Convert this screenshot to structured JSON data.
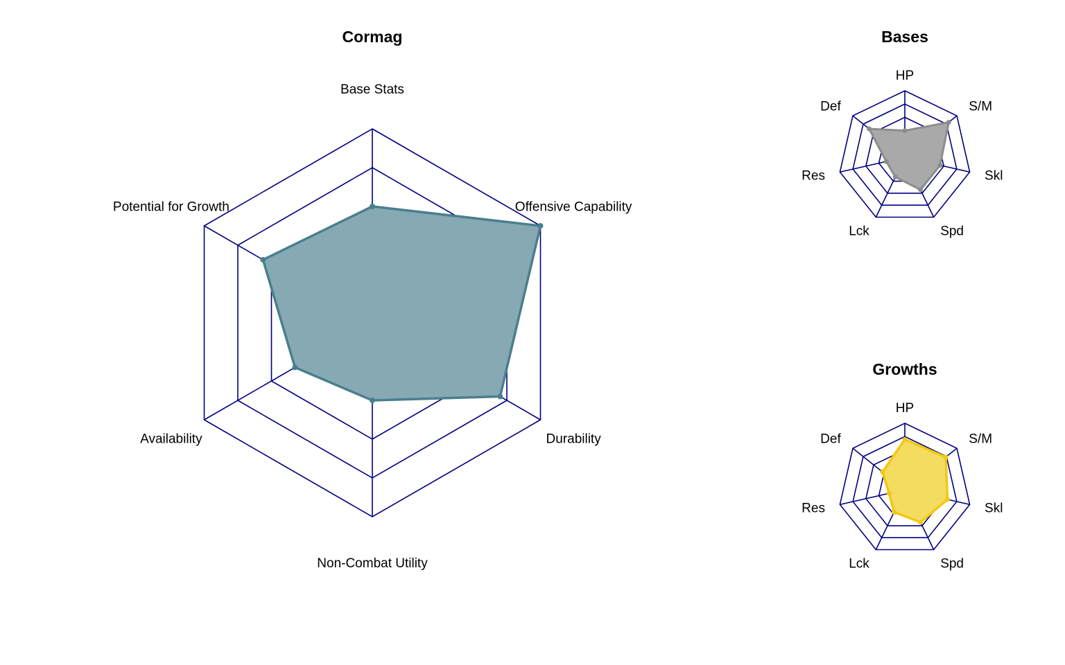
{
  "colors": {
    "grid": "#000080",
    "main_fill": "#86a9b4",
    "main_line": "#4a7f8c",
    "bases_fill": "#a9a9a9",
    "bases_line": "#8c8c8c",
    "growths_fill": "#f3dc60",
    "growths_line": "#f2c811"
  },
  "chart_data": [
    {
      "type": "radar",
      "title": "Cormag",
      "axes": [
        "Base Stats",
        "Offensive Capability",
        "Durability",
        "Non-Combat Utility",
        "Availability",
        "Potential for Growth"
      ],
      "values": [
        6.0,
        10.0,
        7.6,
        4.0,
        4.6,
        6.5
      ],
      "rmax": 10,
      "grid_levels": 5,
      "grid": true,
      "legend": "none"
    },
    {
      "type": "radar",
      "title": "Bases",
      "axes": [
        "HP",
        "S/M",
        "Skl",
        "Spd",
        "Lck",
        "Res",
        "Def"
      ],
      "values": [
        2.8,
        5.9,
        3.8,
        3.8,
        2.3,
        2.0,
        4.8
      ],
      "rmax": 7,
      "grid_levels": 5,
      "grid": true,
      "legend": "none"
    },
    {
      "type": "radar",
      "title": "Growths",
      "axes": [
        "HP",
        "S/M",
        "Skl",
        "Spd",
        "Lck",
        "Res",
        "Def"
      ],
      "values": [
        5.3,
        5.5,
        4.6,
        3.8,
        2.6,
        1.7,
        3.0
      ],
      "rmax": 7,
      "grid_levels": 5,
      "grid": true,
      "legend": "none"
    }
  ]
}
